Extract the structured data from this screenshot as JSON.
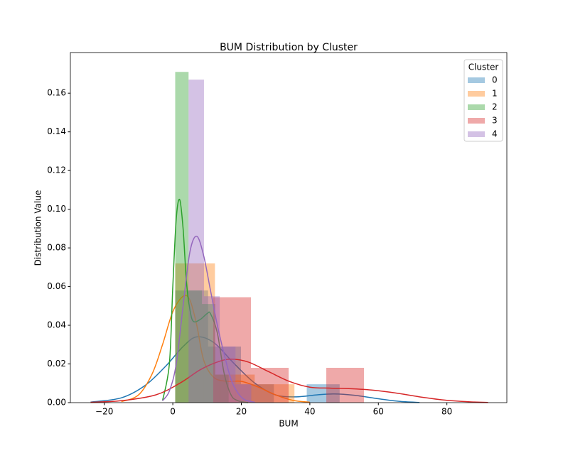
{
  "chart_data": {
    "type": "distplot",
    "title": "BUM Distribution by Cluster",
    "x_label": "BUM",
    "y_label": "Distribution Value",
    "legend_title": "Cluster",
    "legend_position": "upper right",
    "xlim": [
      -29.9,
      97.5
    ],
    "ylim": [
      0,
      0.181
    ],
    "xticks": [
      {
        "value": -20,
        "label": "−20"
      },
      0,
      20,
      40,
      60,
      80
    ],
    "yticks": [
      {
        "value": 0,
        "label": "0.00"
      },
      {
        "value": 0.02,
        "label": "0.02"
      },
      {
        "value": 0.04,
        "label": "0.04"
      },
      {
        "value": 0.06,
        "label": "0.06"
      },
      {
        "value": 0.08,
        "label": "0.08"
      },
      {
        "value": 0.1,
        "label": "0.10"
      },
      {
        "value": 0.12,
        "label": "0.12"
      },
      {
        "value": 0.14,
        "label": "0.14"
      },
      {
        "value": 0.16,
        "label": "0.16"
      }
    ],
    "hist_alpha": 0.4,
    "series": [
      {
        "name": "0",
        "color": "#1f77b4",
        "bins": [
          0.7,
          10.3,
          19.9,
          29.5,
          39.1,
          48.7
        ],
        "values": [
          0.058,
          0.029,
          0.0095,
          0,
          0.0095
        ],
        "kde_x": [
          -24,
          -15,
          -8,
          -2,
          3,
          7,
          12,
          18,
          24,
          30,
          36,
          42,
          47,
          53,
          60,
          66,
          72
        ],
        "kde_y": [
          0.0003,
          0.0025,
          0.009,
          0.019,
          0.029,
          0.034,
          0.031,
          0.02,
          0.01,
          0.004,
          0.003,
          0.004,
          0.0045,
          0.0038,
          0.002,
          0.0007,
          0.0001
        ]
      },
      {
        "name": "1",
        "color": "#ff7f0e",
        "bins": [
          0.7,
          12.3,
          23.9,
          35.5
        ],
        "values": [
          0.072,
          0.0145,
          0.0095
        ],
        "kde_x": [
          -15,
          -10,
          -6,
          -3,
          0,
          3,
          5,
          7,
          9,
          12,
          16,
          20,
          25,
          30,
          35,
          40
        ],
        "kde_y": [
          0.0005,
          0.004,
          0.015,
          0.03,
          0.047,
          0.055,
          0.053,
          0.04,
          0.022,
          0.013,
          0.011,
          0.011,
          0.008,
          0.004,
          0.0012,
          0.0002
        ]
      },
      {
        "name": "2",
        "color": "#2ca02c",
        "bins": [
          0.7,
          4.6,
          8.5,
          12.4,
          16.3
        ],
        "values": [
          0.171,
          0.058,
          0.051,
          0.0145
        ],
        "kde_x": [
          -3,
          -1,
          0,
          1,
          2,
          3,
          4,
          5,
          6,
          8,
          10,
          11,
          13,
          15,
          17,
          19,
          22
        ],
        "kde_y": [
          0.001,
          0.02,
          0.06,
          0.095,
          0.105,
          0.09,
          0.062,
          0.048,
          0.042,
          0.043,
          0.046,
          0.046,
          0.036,
          0.015,
          0.004,
          0.001,
          0
        ]
      },
      {
        "name": "3",
        "color": "#d62728",
        "bins": [
          11.8,
          22.8,
          33.8,
          44.8,
          55.8
        ],
        "values": [
          0.0545,
          0.018,
          0,
          0.018
        ],
        "kde_x": [
          -24,
          -15,
          -5,
          2,
          8,
          13,
          17,
          22,
          28,
          34,
          40,
          46,
          52,
          58,
          65,
          72,
          80,
          88,
          92
        ],
        "kde_y": [
          0.0002,
          0.001,
          0.004,
          0.01,
          0.017,
          0.021,
          0.0225,
          0.021,
          0.016,
          0.011,
          0.008,
          0.0075,
          0.0072,
          0.0065,
          0.005,
          0.003,
          0.0012,
          0.0003,
          0.0001
        ]
      },
      {
        "name": "4",
        "color": "#9467bd",
        "bins": [
          4.6,
          9.1,
          13.7,
          18.3,
          22.9
        ],
        "values": [
          0.167,
          0.055,
          0.029,
          0.0095
        ],
        "kde_x": [
          -3,
          -1,
          1,
          3,
          5,
          7,
          9,
          11,
          13,
          15,
          17,
          19,
          21,
          24
        ],
        "kde_y": [
          0.001,
          0.006,
          0.02,
          0.05,
          0.078,
          0.086,
          0.076,
          0.058,
          0.04,
          0.025,
          0.012,
          0.005,
          0.0015,
          0.0002
        ]
      }
    ]
  }
}
